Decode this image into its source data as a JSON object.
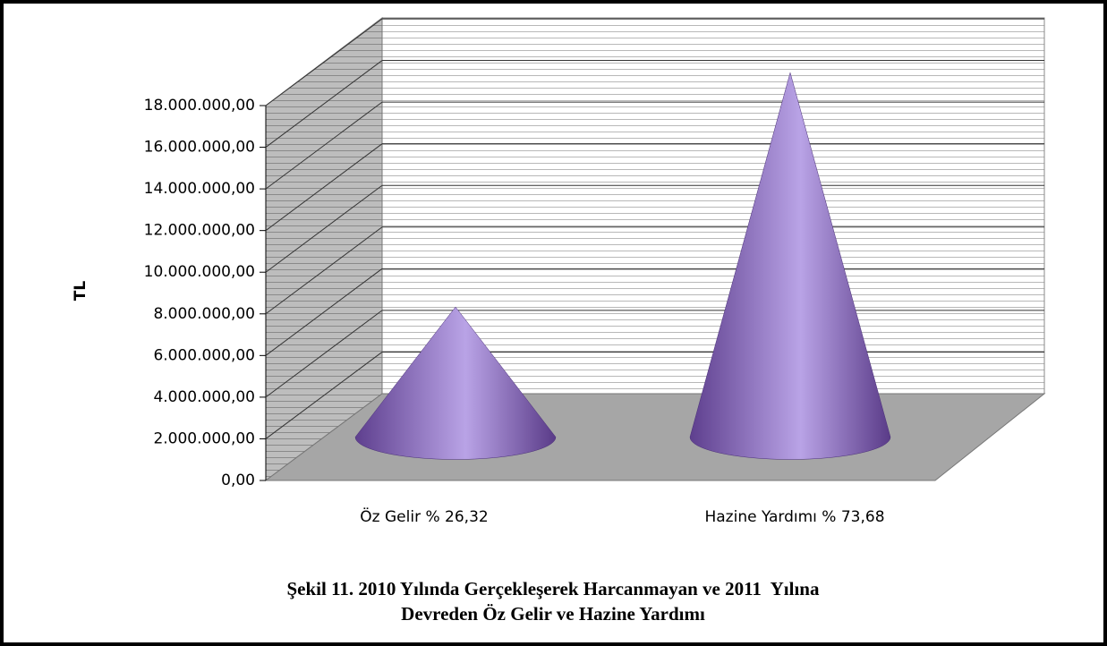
{
  "chart_data": {
    "type": "cone",
    "ylabel": "TL",
    "categories": [
      "Öz Gelir % 26,32",
      "Hazine Yardımı % 73,68"
    ],
    "values": [
      6250000,
      17500000
    ],
    "color": "#9b7fd0",
    "ylim": [
      0,
      18000000
    ],
    "yticks": [
      {
        "value": 0,
        "label": "0,00"
      },
      {
        "value": 2000000,
        "label": "2.000.000,00"
      },
      {
        "value": 4000000,
        "label": "4.000.000,00"
      },
      {
        "value": 6000000,
        "label": "6.000.000,00"
      },
      {
        "value": 8000000,
        "label": "8.000.000,00"
      },
      {
        "value": 10000000,
        "label": "10.000.000,00"
      },
      {
        "value": 12000000,
        "label": "12.000.000,00"
      },
      {
        "value": 14000000,
        "label": "14.000.000,00"
      },
      {
        "value": 16000000,
        "label": "16.000.000,00"
      },
      {
        "value": 18000000,
        "label": "18.000.000,00"
      }
    ],
    "grid": true,
    "caption": [
      "Şekil 11. 2010 Yılında Gerçekleşerek Harcanmayan ve 2011  Yılına",
      "Devreden Öz Gelir ve Hazine Yardımı"
    ]
  }
}
